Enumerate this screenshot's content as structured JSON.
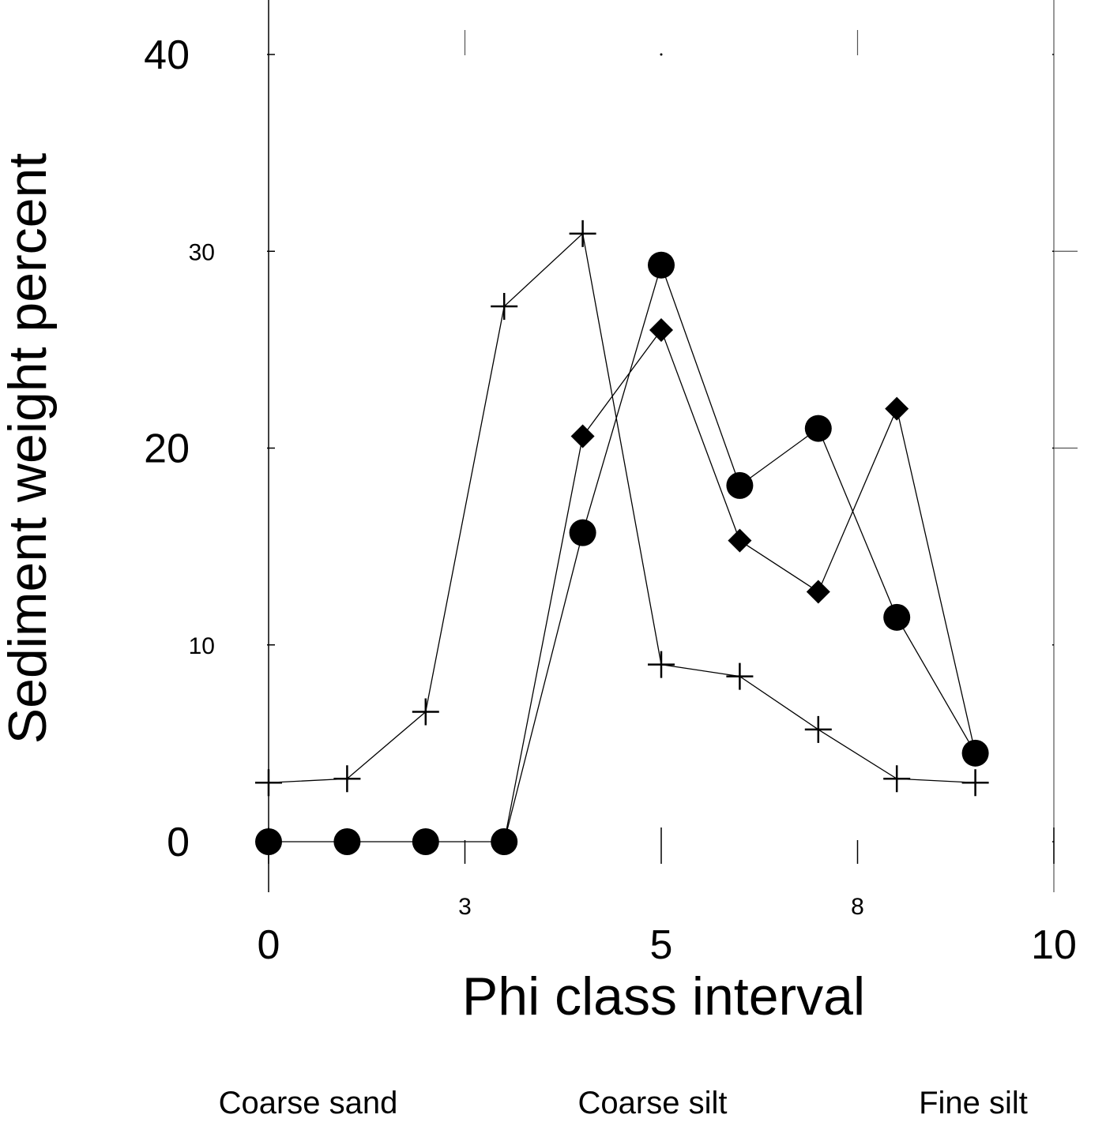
{
  "chart_data": {
    "type": "line",
    "title": "",
    "xlabel": "Phi class interval",
    "ylabel": "Sediment weight percent",
    "xlim": [
      0,
      10
    ],
    "ylim": [
      -3,
      42
    ],
    "x_major_ticks": [
      {
        "value": 0,
        "label": "0"
      },
      {
        "value": 5,
        "label": "5"
      },
      {
        "value": 10,
        "label": "10"
      }
    ],
    "x_minor_ticks": [
      {
        "value": 2.5,
        "label": "3"
      },
      {
        "value": 7.5,
        "label": "8"
      }
    ],
    "y_major_ticks": [
      {
        "value": 0,
        "label": "0"
      },
      {
        "value": 20,
        "label": "20"
      },
      {
        "value": 40,
        "label": "40"
      }
    ],
    "y_minor_ticks": [
      {
        "value": 10,
        "label": "10"
      },
      {
        "value": 30,
        "label": "30"
      }
    ],
    "grid": false,
    "legend": "none",
    "size_classes": [
      "Coarse sand",
      "Coarse silt",
      "Fine silt"
    ],
    "series": [
      {
        "marker": "plus",
        "points": [
          [
            0,
            3.0
          ],
          [
            1,
            3.2
          ],
          [
            2,
            6.6
          ],
          [
            3,
            27.2
          ],
          [
            4,
            30.9
          ],
          [
            5,
            9.0
          ],
          [
            6,
            8.4
          ],
          [
            7,
            5.7
          ],
          [
            8,
            3.2
          ],
          [
            9,
            3.0
          ]
        ]
      },
      {
        "marker": "circle",
        "points": [
          [
            0,
            0
          ],
          [
            1,
            0
          ],
          [
            2,
            0
          ],
          [
            3,
            0
          ],
          [
            4,
            15.7
          ],
          [
            5,
            29.3
          ],
          [
            6,
            18.1
          ],
          [
            7,
            21.0
          ],
          [
            8,
            11.4
          ],
          [
            9,
            4.5
          ]
        ]
      },
      {
        "marker": "diamond",
        "points": [
          [
            3,
            0
          ],
          [
            4,
            20.6
          ],
          [
            5,
            26.0
          ],
          [
            6,
            15.3
          ],
          [
            7,
            12.7
          ],
          [
            8,
            22.0
          ],
          [
            9,
            4.5
          ]
        ]
      }
    ]
  }
}
